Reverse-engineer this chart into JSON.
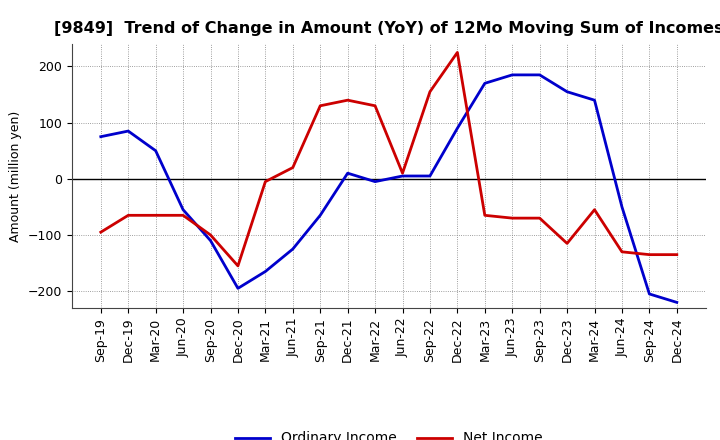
{
  "title": "[9849]  Trend of Change in Amount (YoY) of 12Mo Moving Sum of Incomes",
  "ylabel": "Amount (million yen)",
  "x_labels": [
    "Sep-19",
    "Dec-19",
    "Mar-20",
    "Jun-20",
    "Sep-20",
    "Dec-20",
    "Mar-21",
    "Jun-21",
    "Sep-21",
    "Dec-21",
    "Mar-22",
    "Jun-22",
    "Sep-22",
    "Dec-22",
    "Mar-23",
    "Jun-23",
    "Sep-23",
    "Dec-23",
    "Mar-24",
    "Jun-24",
    "Sep-24",
    "Dec-24"
  ],
  "ordinary_income": [
    75,
    85,
    50,
    -55,
    -110,
    -195,
    -165,
    -125,
    -65,
    10,
    -5,
    5,
    5,
    90,
    170,
    185,
    185,
    155,
    140,
    -50,
    -205,
    -220
  ],
  "net_income": [
    -95,
    -65,
    -65,
    -65,
    -100,
    -155,
    -5,
    20,
    130,
    140,
    130,
    10,
    155,
    225,
    -65,
    -70,
    -70,
    -115,
    -55,
    -130,
    -135,
    -135
  ],
  "ordinary_color": "#0000cc",
  "net_color": "#cc0000",
  "ylim": [
    -230,
    240
  ],
  "yticks": [
    -200,
    -100,
    0,
    100,
    200
  ],
  "bg_color": "#ffffff",
  "grid_color": "#808080",
  "title_fontsize": 11.5,
  "axis_label_fontsize": 9,
  "tick_fontsize": 9,
  "legend_fontsize": 10,
  "linewidth": 2.0
}
